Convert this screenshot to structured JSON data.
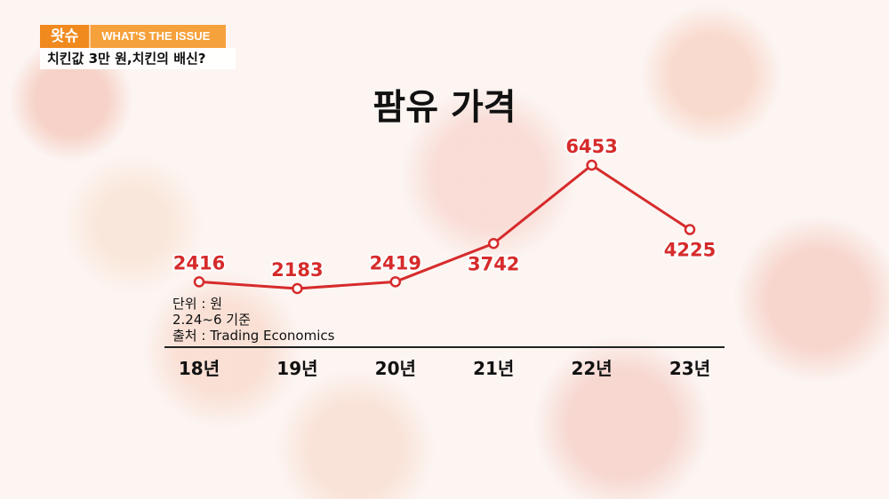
{
  "header": {
    "badge": "왓슈",
    "segment": "WHAT'S THE ISSUE",
    "subtitle": "치킨값 3만 원,치킨의 배신?"
  },
  "notes": {
    "unit": "단위 : 원",
    "basis": "2.24~6 기준",
    "source": "출처 : Trading Economics"
  },
  "colors": {
    "line": "#d62b2b",
    "badge": "#f08a1e"
  },
  "chart_data": {
    "type": "line",
    "title": "팜유 가격",
    "categories": [
      "18년",
      "19년",
      "20년",
      "21년",
      "22년",
      "23년"
    ],
    "values": [
      2416,
      2183,
      2419,
      3742,
      6453,
      4225
    ],
    "data_labels": [
      "2416",
      "2183",
      "2419",
      "3742",
      "6453",
      "4225"
    ],
    "xlabel": "",
    "ylabel": "",
    "grid": false,
    "legend": "none"
  }
}
